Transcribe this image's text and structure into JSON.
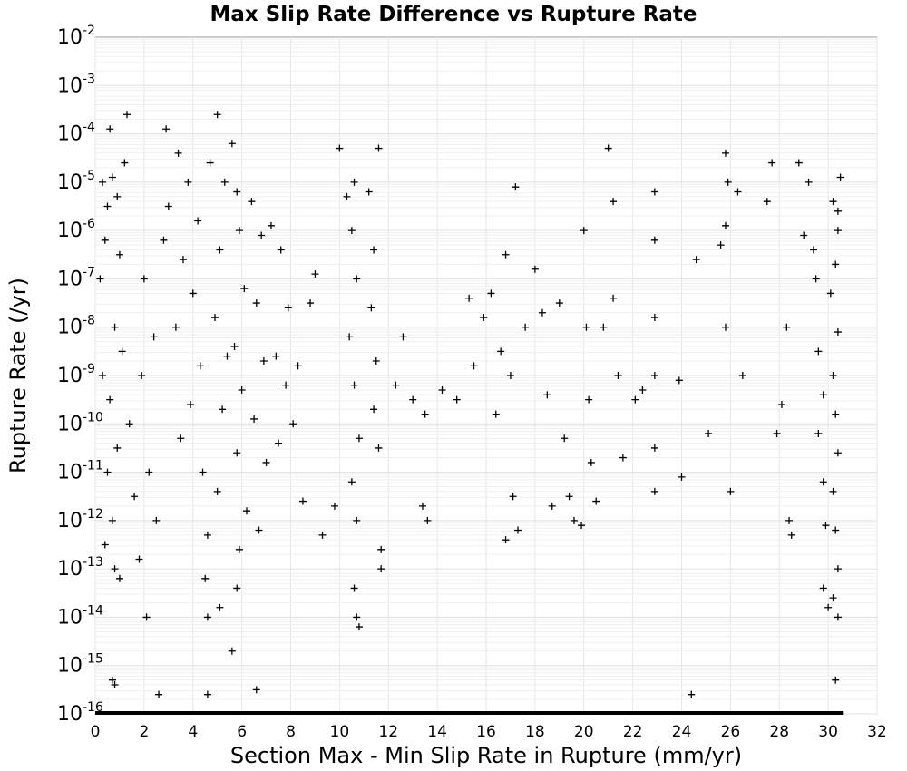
{
  "chart_data": {
    "type": "scatter",
    "title": "Max Slip Rate Difference vs Rupture Rate",
    "xlabel": "Section Max - Min Slip Rate in Rupture (mm/yr)",
    "ylabel": "Rupture Rate (/yr)",
    "xlim": [
      0,
      32
    ],
    "ylim": [
      1e-16,
      0.01
    ],
    "y_scale": "log",
    "grid": true,
    "marker": "plus",
    "marker_color": "#000000",
    "x_ticks": [
      "0",
      "2",
      "4",
      "6",
      "8",
      "10",
      "12",
      "14",
      "16",
      "18",
      "20",
      "22",
      "24",
      "26",
      "28",
      "30",
      "32"
    ],
    "y_ticks": [
      {
        "base": "10",
        "exp": "-2"
      },
      {
        "base": "10",
        "exp": "-3"
      },
      {
        "base": "10",
        "exp": "-4"
      },
      {
        "base": "10",
        "exp": "-5"
      },
      {
        "base": "10",
        "exp": "-6"
      },
      {
        "base": "10",
        "exp": "-7"
      },
      {
        "base": "10",
        "exp": "-8"
      },
      {
        "base": "10",
        "exp": "-9"
      },
      {
        "base": "10",
        "exp": "-10"
      },
      {
        "base": "10",
        "exp": "-11"
      },
      {
        "base": "10",
        "exp": "-12"
      },
      {
        "base": "10",
        "exp": "-13"
      },
      {
        "base": "10",
        "exp": "-14"
      },
      {
        "base": "10",
        "exp": "-15"
      },
      {
        "base": "10",
        "exp": "-16"
      }
    ],
    "points": [
      [
        0.3,
        -5.0
      ],
      [
        0.5,
        -5.5
      ],
      [
        0.7,
        -4.9
      ],
      [
        0.9,
        -5.3
      ],
      [
        1.2,
        -4.6
      ],
      [
        1.3,
        -3.6
      ],
      [
        0.6,
        -3.9
      ],
      [
        0.4,
        -6.2
      ],
      [
        1.0,
        -6.5
      ],
      [
        0.2,
        -7.0
      ],
      [
        0.8,
        -8.0
      ],
      [
        1.1,
        -8.5
      ],
      [
        0.3,
        -9.0
      ],
      [
        0.6,
        -9.5
      ],
      [
        1.4,
        -10.0
      ],
      [
        0.9,
        -10.5
      ],
      [
        0.5,
        -11.0
      ],
      [
        1.6,
        -11.5
      ],
      [
        0.7,
        -12.0
      ],
      [
        0.4,
        -12.5
      ],
      [
        0.8,
        -13.0
      ],
      [
        1.0,
        -13.2
      ],
      [
        0.7,
        -15.3
      ],
      [
        0.8,
        -15.4
      ],
      [
        2.6,
        -15.6
      ],
      [
        2.1,
        -14.0
      ],
      [
        1.8,
        -12.8
      ],
      [
        2.5,
        -12.0
      ],
      [
        2.2,
        -11.0
      ],
      [
        1.9,
        -9.0
      ],
      [
        2.4,
        -8.2
      ],
      [
        2.0,
        -7.0
      ],
      [
        2.8,
        -6.2
      ],
      [
        3.0,
        -5.5
      ],
      [
        2.9,
        -3.9
      ],
      [
        3.4,
        -4.4
      ],
      [
        3.8,
        -5.0
      ],
      [
        4.2,
        -5.8
      ],
      [
        3.6,
        -6.6
      ],
      [
        4.0,
        -7.3
      ],
      [
        3.3,
        -8.0
      ],
      [
        4.3,
        -8.8
      ],
      [
        3.9,
        -9.6
      ],
      [
        3.5,
        -10.3
      ],
      [
        4.4,
        -11.0
      ],
      [
        4.6,
        -12.3
      ],
      [
        4.5,
        -13.2
      ],
      [
        4.6,
        -14.0
      ],
      [
        4.6,
        -15.6
      ],
      [
        5.0,
        -3.6
      ],
      [
        4.7,
        -4.6
      ],
      [
        5.3,
        -5.0
      ],
      [
        5.1,
        -6.4
      ],
      [
        4.9,
        -7.8
      ],
      [
        5.4,
        -8.6
      ],
      [
        5.2,
        -9.7
      ],
      [
        5.0,
        -11.4
      ],
      [
        5.1,
        -13.8
      ],
      [
        5.6,
        -4.2
      ],
      [
        5.8,
        -5.2
      ],
      [
        5.9,
        -6.0
      ],
      [
        6.1,
        -7.2
      ],
      [
        5.7,
        -8.4
      ],
      [
        6.0,
        -9.3
      ],
      [
        5.8,
        -10.6
      ],
      [
        6.2,
        -11.8
      ],
      [
        5.9,
        -12.6
      ],
      [
        5.6,
        -14.7
      ],
      [
        5.8,
        -13.4
      ],
      [
        6.6,
        -15.5
      ],
      [
        6.4,
        -5.4
      ],
      [
        6.8,
        -6.1
      ],
      [
        6.6,
        -7.5
      ],
      [
        6.9,
        -8.7
      ],
      [
        6.5,
        -9.9
      ],
      [
        7.0,
        -10.8
      ],
      [
        6.7,
        -12.2
      ],
      [
        7.2,
        -5.9
      ],
      [
        7.6,
        -6.4
      ],
      [
        7.4,
        -8.6
      ],
      [
        7.8,
        -9.2
      ],
      [
        7.5,
        -10.4
      ],
      [
        7.9,
        -7.6
      ],
      [
        8.3,
        -8.8
      ],
      [
        8.1,
        -10.0
      ],
      [
        8.5,
        -11.6
      ],
      [
        9.0,
        -6.9
      ],
      [
        8.8,
        -7.5
      ],
      [
        9.3,
        -12.3
      ],
      [
        9.8,
        -11.7
      ],
      [
        10.0,
        -4.3
      ],
      [
        10.3,
        -5.3
      ],
      [
        10.6,
        -5.0
      ],
      [
        10.5,
        -6.0
      ],
      [
        10.7,
        -7.0
      ],
      [
        10.4,
        -8.2
      ],
      [
        10.6,
        -9.2
      ],
      [
        10.8,
        -10.3
      ],
      [
        10.5,
        -11.2
      ],
      [
        10.7,
        -12.0
      ],
      [
        10.6,
        -13.4
      ],
      [
        10.7,
        -14.0
      ],
      [
        10.8,
        -14.2
      ],
      [
        11.2,
        -5.2
      ],
      [
        11.4,
        -6.4
      ],
      [
        11.3,
        -7.6
      ],
      [
        11.6,
        -4.3
      ],
      [
        11.5,
        -8.7
      ],
      [
        11.4,
        -9.7
      ],
      [
        11.6,
        -10.5
      ],
      [
        11.7,
        -12.6
      ],
      [
        11.7,
        -13.0
      ],
      [
        12.3,
        -9.2
      ],
      [
        12.6,
        -8.2
      ],
      [
        13.0,
        -9.5
      ],
      [
        13.5,
        -9.8
      ],
      [
        13.4,
        -11.7
      ],
      [
        13.6,
        -12.0
      ],
      [
        14.2,
        -9.3
      ],
      [
        14.8,
        -9.5
      ],
      [
        15.3,
        -7.4
      ],
      [
        15.5,
        -8.8
      ],
      [
        15.9,
        -7.8
      ],
      [
        16.2,
        -7.3
      ],
      [
        16.4,
        -9.8
      ],
      [
        16.6,
        -8.5
      ],
      [
        16.8,
        -6.5
      ],
      [
        17.0,
        -9.0
      ],
      [
        17.2,
        -5.1
      ],
      [
        17.1,
        -11.5
      ],
      [
        17.3,
        -12.2
      ],
      [
        16.8,
        -12.4
      ],
      [
        17.6,
        -8.0
      ],
      [
        18.0,
        -6.8
      ],
      [
        18.3,
        -7.7
      ],
      [
        18.5,
        -9.4
      ],
      [
        18.7,
        -11.7
      ],
      [
        19.0,
        -7.5
      ],
      [
        19.2,
        -10.3
      ],
      [
        19.4,
        -11.5
      ],
      [
        19.6,
        -12.0
      ],
      [
        19.9,
        -12.1
      ],
      [
        20.0,
        -6.0
      ],
      [
        20.1,
        -8.0
      ],
      [
        20.2,
        -9.5
      ],
      [
        20.3,
        -10.8
      ],
      [
        20.5,
        -11.6
      ],
      [
        20.8,
        -8.0
      ],
      [
        21.0,
        -4.3
      ],
      [
        21.2,
        -5.4
      ],
      [
        21.2,
        -7.4
      ],
      [
        21.4,
        -9.0
      ],
      [
        21.6,
        -10.7
      ],
      [
        22.1,
        -9.5
      ],
      [
        22.4,
        -9.3
      ],
      [
        22.9,
        -5.2
      ],
      [
        22.9,
        -6.2
      ],
      [
        22.9,
        -7.8
      ],
      [
        22.9,
        -9.0
      ],
      [
        22.9,
        -10.5
      ],
      [
        22.9,
        -11.4
      ],
      [
        23.9,
        -9.1
      ],
      [
        24.0,
        -11.1
      ],
      [
        24.4,
        -15.6
      ],
      [
        24.6,
        -6.6
      ],
      [
        25.1,
        -10.2
      ],
      [
        25.6,
        -6.3
      ],
      [
        25.8,
        -4.4
      ],
      [
        25.9,
        -5.0
      ],
      [
        25.8,
        -5.9
      ],
      [
        25.8,
        -8.0
      ],
      [
        26.0,
        -11.4
      ],
      [
        26.3,
        -5.2
      ],
      [
        26.5,
        -9.0
      ],
      [
        27.5,
        -5.4
      ],
      [
        27.7,
        -4.6
      ],
      [
        27.9,
        -10.2
      ],
      [
        28.1,
        -9.6
      ],
      [
        28.3,
        -8.0
      ],
      [
        28.4,
        -12.0
      ],
      [
        28.5,
        -12.3
      ],
      [
        28.8,
        -4.6
      ],
      [
        29.0,
        -6.1
      ],
      [
        29.2,
        -5.0
      ],
      [
        29.4,
        -6.4
      ],
      [
        29.5,
        -7.0
      ],
      [
        29.6,
        -8.5
      ],
      [
        29.8,
        -9.4
      ],
      [
        29.6,
        -10.2
      ],
      [
        29.8,
        -11.2
      ],
      [
        29.9,
        -12.1
      ],
      [
        29.8,
        -13.4
      ],
      [
        30.0,
        -13.8
      ],
      [
        30.2,
        -5.4
      ],
      [
        30.4,
        -6.0
      ],
      [
        30.3,
        -6.7
      ],
      [
        30.1,
        -7.3
      ],
      [
        30.4,
        -8.1
      ],
      [
        30.2,
        -9.0
      ],
      [
        30.3,
        -9.8
      ],
      [
        30.4,
        -10.6
      ],
      [
        30.2,
        -11.4
      ],
      [
        30.3,
        -12.2
      ],
      [
        30.4,
        -13.0
      ],
      [
        30.2,
        -13.6
      ],
      [
        30.4,
        -14.0
      ],
      [
        30.3,
        -15.3
      ],
      [
        30.5,
        -4.9
      ],
      [
        30.4,
        -5.6
      ]
    ]
  }
}
